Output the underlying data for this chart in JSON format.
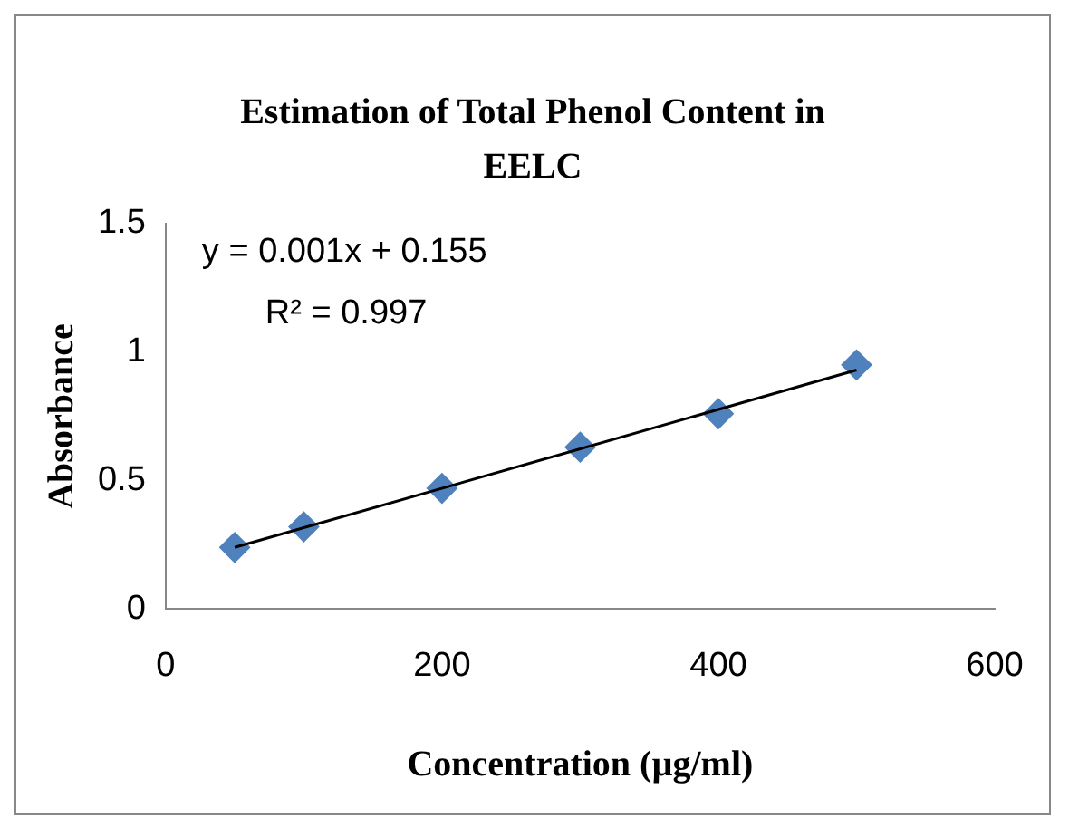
{
  "chart_data": {
    "type": "scatter",
    "title": "Estimation of Total Phenol Content in EELC",
    "xlabel": "Concentration (µg/ml)",
    "ylabel": "Absorbance",
    "x": [
      50,
      100,
      200,
      300,
      400,
      500
    ],
    "series": [
      {
        "type": "scatter",
        "color": "#4f81bd",
        "values": [
          0.24,
          0.32,
          0.47,
          0.63,
          0.76,
          0.95
        ],
        "marker": "diamond"
      },
      {
        "type": "line",
        "color": "#000000",
        "x": [
          50,
          500
        ],
        "values": [
          0.24,
          0.93
        ],
        "marker": "none"
      }
    ],
    "annotations": [
      "y = 0.001x + 0.155",
      "R² = 0.997"
    ],
    "xlim": [
      0,
      600
    ],
    "xticks": [
      0,
      200,
      400,
      600
    ],
    "ylim": [
      0,
      1.5
    ],
    "yticks": [
      0,
      0.5,
      1,
      1.5
    ],
    "grid": false,
    "legend": false
  }
}
